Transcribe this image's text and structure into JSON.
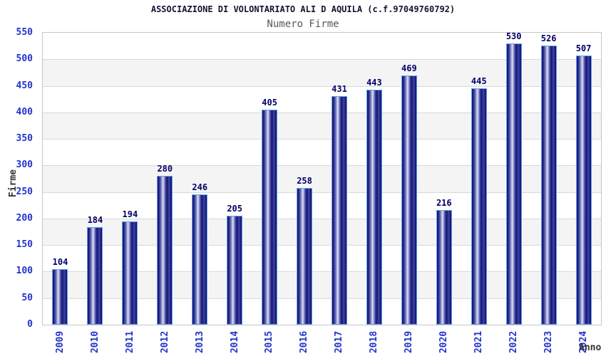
{
  "header": {
    "title": "ASSOCIAZIONE DI VOLONTARIATO ALI D AQUILA (c.f.97049760792)",
    "subtitle": "Numero Firme"
  },
  "chart_data": {
    "type": "bar",
    "title": "Numero Firme",
    "categories": [
      "2009",
      "2010",
      "2011",
      "2012",
      "2013",
      "2014",
      "2015",
      "2016",
      "2017",
      "2018",
      "2019",
      "2020",
      "2021",
      "2022",
      "2023",
      "2024"
    ],
    "values": [
      104,
      184,
      194,
      280,
      246,
      205,
      405,
      258,
      431,
      443,
      469,
      216,
      445,
      530,
      526,
      507
    ],
    "xlabel": "Anno",
    "ylabel": "Firme",
    "ylim": [
      0,
      550
    ],
    "ytick_step": 50,
    "grid": "horizontal-bands-alternating",
    "legend": "none",
    "value_labels": "above-bars",
    "colors": {
      "bar_dark": "#0e0e70",
      "bar_highlight": "#dfe2f4",
      "bar_border": "#63a4e9",
      "axis_label_blue": "#2233cc",
      "value_label_navy": "#000066",
      "title_color": "#141430",
      "subtitle_color": "#595959",
      "band_gray": "#f4f4f4",
      "gridline": "#d8d8d8",
      "plot_border": "#c6c6c6",
      "axis_title_color": "#333333"
    }
  }
}
